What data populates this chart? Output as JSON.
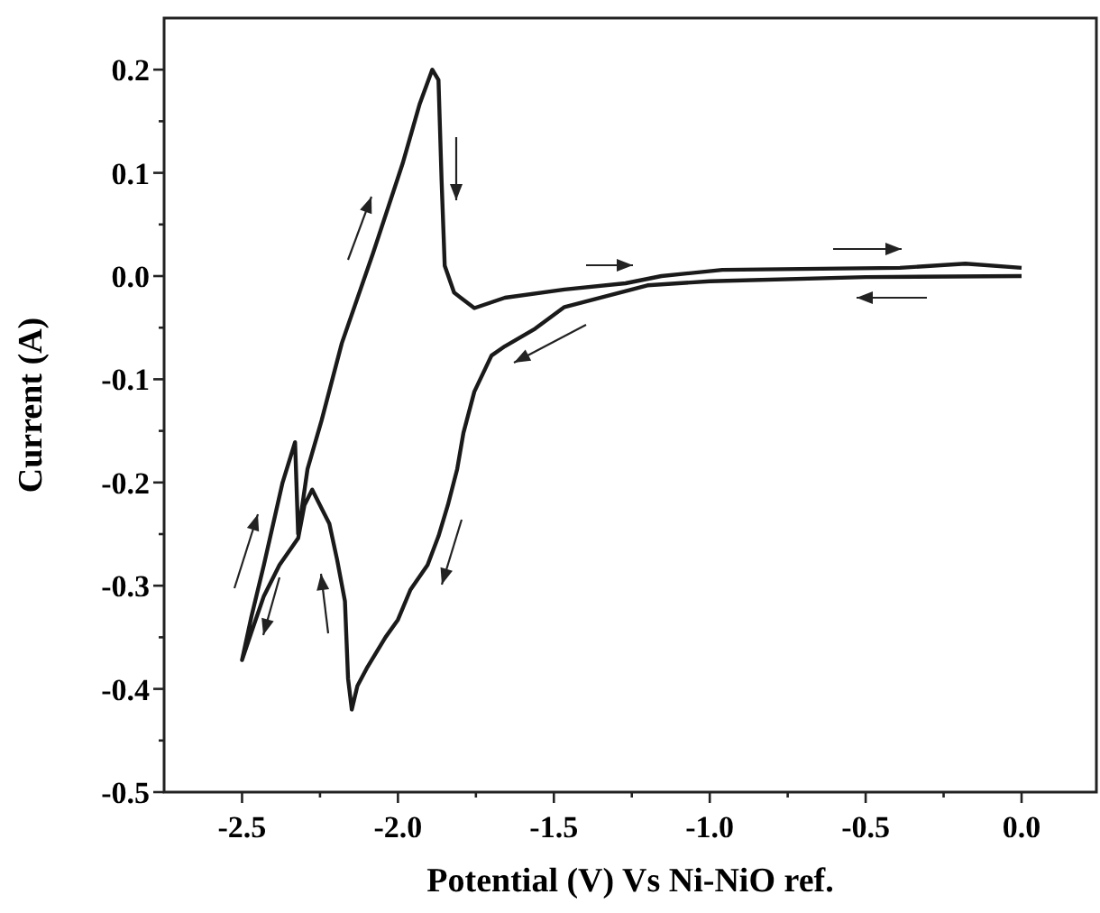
{
  "chart_data": {
    "type": "line",
    "xlabel": "Potential (V) Vs Ni-NiO ref.",
    "ylabel": "Current (A)",
    "xlim": [
      -2.75,
      0.24
    ],
    "ylim": [
      -0.5,
      0.25
    ],
    "xticks": [
      -2.5,
      {
        "value": -2.25,
        "label": null
      },
      {
        "value": -2,
        "label": "-2.0"
      },
      {
        "value": -1.75,
        "label": null
      },
      -1.5,
      {
        "value": -1.25,
        "label": null
      },
      {
        "value": -1,
        "label": "-1.0"
      },
      {
        "value": -0.75,
        "label": null
      },
      -0.5,
      {
        "value": -0.25,
        "label": null
      },
      {
        "value": 0,
        "label": "0.0"
      }
    ],
    "yticks": [
      -0.5,
      {
        "value": -0.45,
        "label": null
      },
      -0.4,
      {
        "value": -0.35,
        "label": null
      },
      -0.3,
      {
        "value": -0.25,
        "label": null
      },
      -0.2,
      {
        "value": -0.15,
        "label": null
      },
      -0.1,
      {
        "value": -0.05,
        "label": null
      },
      {
        "value": 0,
        "label": "0.0"
      },
      {
        "value": 0.05,
        "label": null
      },
      0.1,
      {
        "value": 0.15,
        "label": null
      },
      0.2
    ],
    "grid": false,
    "marker": "none",
    "line_style": "solid",
    "series": [
      {
        "color": "#1a1a1a",
        "x": [
          0,
          -0.5,
          -1.0,
          -1.2,
          -1.466,
          -1.56,
          -1.657,
          -1.7,
          -1.755,
          -1.79,
          -1.81,
          -1.84,
          -1.87,
          -1.905,
          -1.96,
          -2.0,
          -2.04,
          -2.1,
          -2.13,
          -2.148,
          -2.16,
          -2.17,
          -2.195,
          -2.22,
          -2.25,
          -2.275,
          -2.3,
          -2.32,
          -2.38,
          -2.43,
          -2.47,
          -2.5,
          -2.47,
          -2.43,
          -2.4,
          -2.37,
          -2.33,
          -2.32,
          -2.29,
          -2.245,
          -2.18,
          -2.08,
          -1.985,
          -1.93,
          -1.89,
          -1.87,
          -1.86,
          -1.85,
          -1.82,
          -1.755,
          -1.657,
          -1.466,
          -1.27,
          -1.155,
          -0.96,
          -0.39,
          -0.18,
          0
        ],
        "values": [
          0,
          -0.001,
          -0.005,
          -0.009,
          -0.03,
          -0.051,
          -0.068,
          -0.077,
          -0.112,
          -0.152,
          -0.187,
          -0.222,
          -0.252,
          -0.28,
          -0.304,
          -0.333,
          -0.35,
          -0.38,
          -0.397,
          -0.42,
          -0.39,
          -0.315,
          -0.275,
          -0.24,
          -0.222,
          -0.207,
          -0.222,
          -0.254,
          -0.28,
          -0.31,
          -0.345,
          -0.372,
          -0.33,
          -0.28,
          -0.24,
          -0.2,
          -0.161,
          -0.25,
          -0.187,
          -0.14,
          -0.065,
          0.022,
          0.109,
          0.167,
          0.2,
          0.19,
          0.092,
          0.01,
          -0.016,
          -0.031,
          -0.021,
          -0.013,
          -0.007,
          0,
          0.006,
          0.008,
          0.012,
          0.008
        ]
      }
    ]
  }
}
